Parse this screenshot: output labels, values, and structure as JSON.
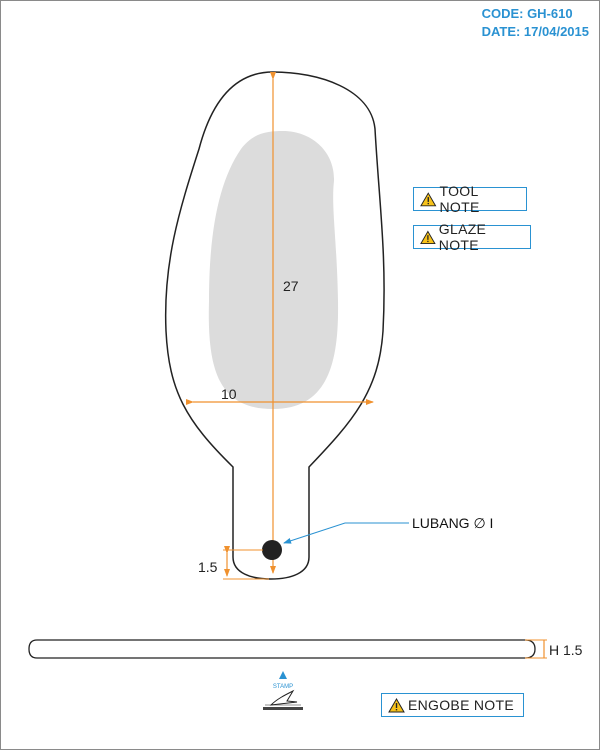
{
  "header": {
    "code": "CODE: GH-610",
    "date": "DATE: 17/04/2015"
  },
  "notes": {
    "tool": "TOOL NOTE",
    "glaze": "GLAZE NOTE",
    "engobe": "ENGOBE NOTE"
  },
  "dimensions": {
    "length": "27",
    "width": "10",
    "base_offset": "1.5",
    "thickness": "H 1.5",
    "hole": "LUBANG ∅ I"
  },
  "stamp": {
    "label": "STAMP"
  },
  "colors": {
    "accent": "#2a92d2",
    "dimension": "#f0912e",
    "glaze_fill": "#dcdcdc",
    "outline": "#222222"
  }
}
